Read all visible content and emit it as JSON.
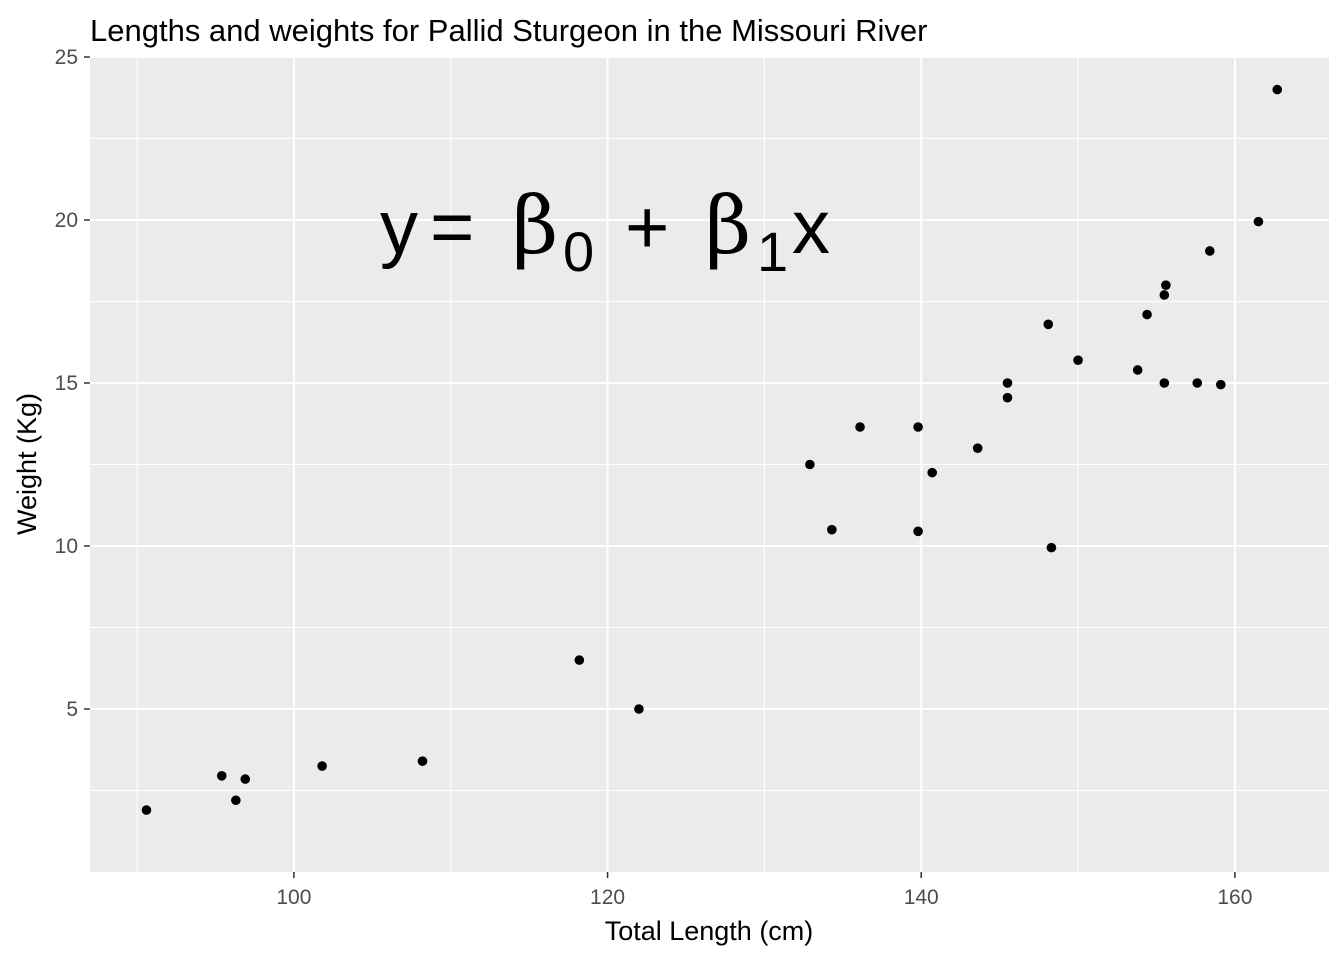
{
  "chart_data": {
    "type": "scatter",
    "title": "Lengths and weights for Pallid Sturgeon in the Missouri River",
    "xlabel": "Total Length (cm)",
    "ylabel": "Weight (Kg)",
    "xlim": [
      87,
      166
    ],
    "ylim": [
      0,
      25
    ],
    "x_ticks": [
      100,
      120,
      140,
      160
    ],
    "y_ticks": [
      5,
      10,
      15,
      20,
      25
    ],
    "grid": true,
    "legend": "none",
    "annotation": {
      "y": "y",
      "equals": "=",
      "beta": "β",
      "sub0": "0",
      "plus": "+",
      "sub1": "1",
      "x": "x"
    },
    "colors": {
      "panel": "#EBEBEB",
      "grid": "#FFFFFF",
      "point": "#000000",
      "tick": "#4D4D4D"
    },
    "points": [
      {
        "x": 90.6,
        "y": 1.9
      },
      {
        "x": 95.4,
        "y": 2.95
      },
      {
        "x": 96.3,
        "y": 2.2
      },
      {
        "x": 96.9,
        "y": 2.85
      },
      {
        "x": 101.8,
        "y": 3.25
      },
      {
        "x": 108.2,
        "y": 3.4
      },
      {
        "x": 118.2,
        "y": 6.5
      },
      {
        "x": 122.0,
        "y": 5.0
      },
      {
        "x": 132.9,
        "y": 12.5
      },
      {
        "x": 134.3,
        "y": 10.5
      },
      {
        "x": 136.1,
        "y": 13.65
      },
      {
        "x": 139.8,
        "y": 13.65
      },
      {
        "x": 139.8,
        "y": 10.45
      },
      {
        "x": 140.7,
        "y": 12.25
      },
      {
        "x": 143.6,
        "y": 13.0
      },
      {
        "x": 145.5,
        "y": 15.0
      },
      {
        "x": 145.5,
        "y": 14.55
      },
      {
        "x": 148.1,
        "y": 16.8
      },
      {
        "x": 148.3,
        "y": 9.95
      },
      {
        "x": 150.0,
        "y": 15.7
      },
      {
        "x": 153.8,
        "y": 15.4
      },
      {
        "x": 154.4,
        "y": 17.1
      },
      {
        "x": 155.5,
        "y": 17.7
      },
      {
        "x": 155.6,
        "y": 18.0
      },
      {
        "x": 155.5,
        "y": 15.0
      },
      {
        "x": 157.6,
        "y": 15.0
      },
      {
        "x": 158.4,
        "y": 19.05
      },
      {
        "x": 159.1,
        "y": 14.95
      },
      {
        "x": 161.5,
        "y": 19.95
      },
      {
        "x": 162.7,
        "y": 24.0
      }
    ]
  }
}
